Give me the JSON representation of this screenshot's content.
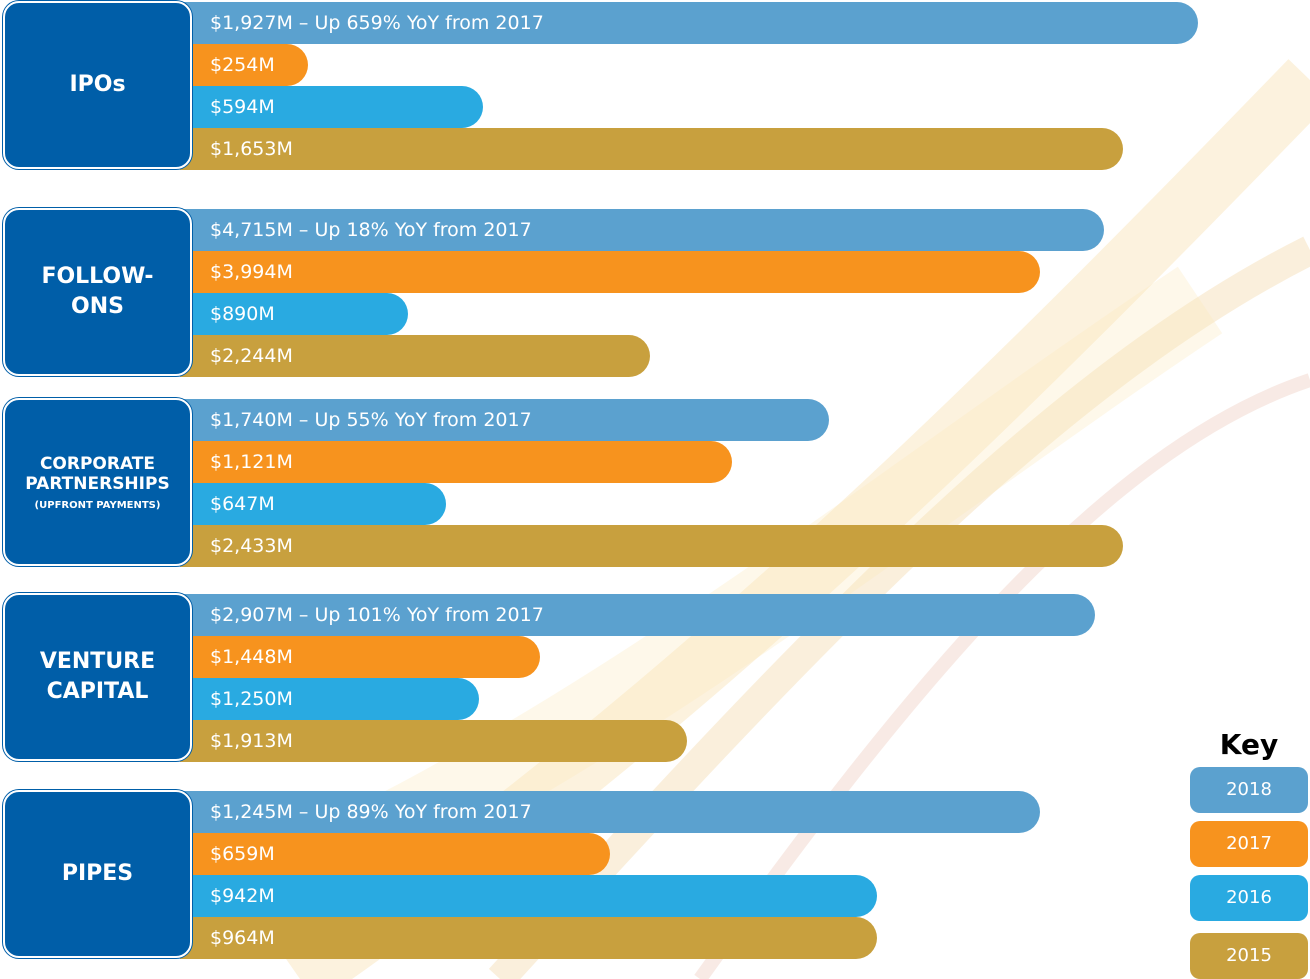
{
  "groups": [
    {
      "label": [
        "IPOs"
      ],
      "bars": [
        "$1,927M – Up 659% YoY from 2017",
        "$254M",
        "$594M",
        "$1,653M"
      ]
    },
    {
      "label": [
        "FOLLOW-",
        "ONS"
      ],
      "bars": [
        "$4,715M – Up 18% YoY from 2017",
        "$3,994M",
        "$890M",
        "$2,244M"
      ]
    },
    {
      "label": [
        "CORPORATE",
        "PARTNERSHIPS"
      ],
      "note": "(UPFRONT PAYMENTS)",
      "bars": [
        "$1,740M – Up 55% YoY from 2017",
        "$1,121M",
        "$647M",
        "$2,433M"
      ]
    },
    {
      "label": [
        "VENTURE",
        "CAPITAL"
      ],
      "bars": [
        "$2,907M – Up 101% YoY from 2017",
        "$1,448M",
        "$1,250M",
        "$1,913M"
      ]
    },
    {
      "label": [
        "PIPES"
      ],
      "bars": [
        "$1,245M – Up 89% YoY from 2017",
        "$659M",
        "$942M",
        "$964M"
      ]
    }
  ],
  "key": {
    "title": "Key",
    "entries": [
      "2018",
      "2017",
      "2016",
      "2015"
    ]
  }
}
